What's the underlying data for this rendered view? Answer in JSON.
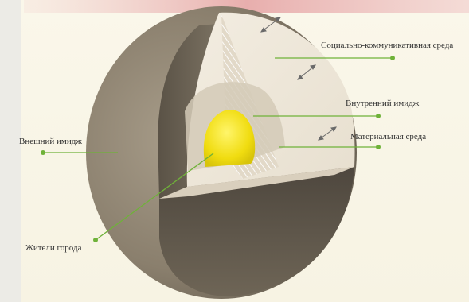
{
  "labels": {
    "social_environment": "Социально-коммуникативная среда",
    "internal_image": "Внутренний имидж",
    "material_environment": "Материальная среда",
    "external_image": "Внешний имидж",
    "residents": "Жители города"
  },
  "colors": {
    "background": "#faf7ea",
    "shell_outer": "#8f8574",
    "shell_inner_dark": "#4e4840",
    "cutaway_face": "#efe8da",
    "core": "#f2e21a",
    "leader_line": "#6fb239",
    "dot": "#6fb239",
    "label_text": "#333333",
    "arrow": "#6a6a6a",
    "top_band": "#e9b4b4"
  }
}
